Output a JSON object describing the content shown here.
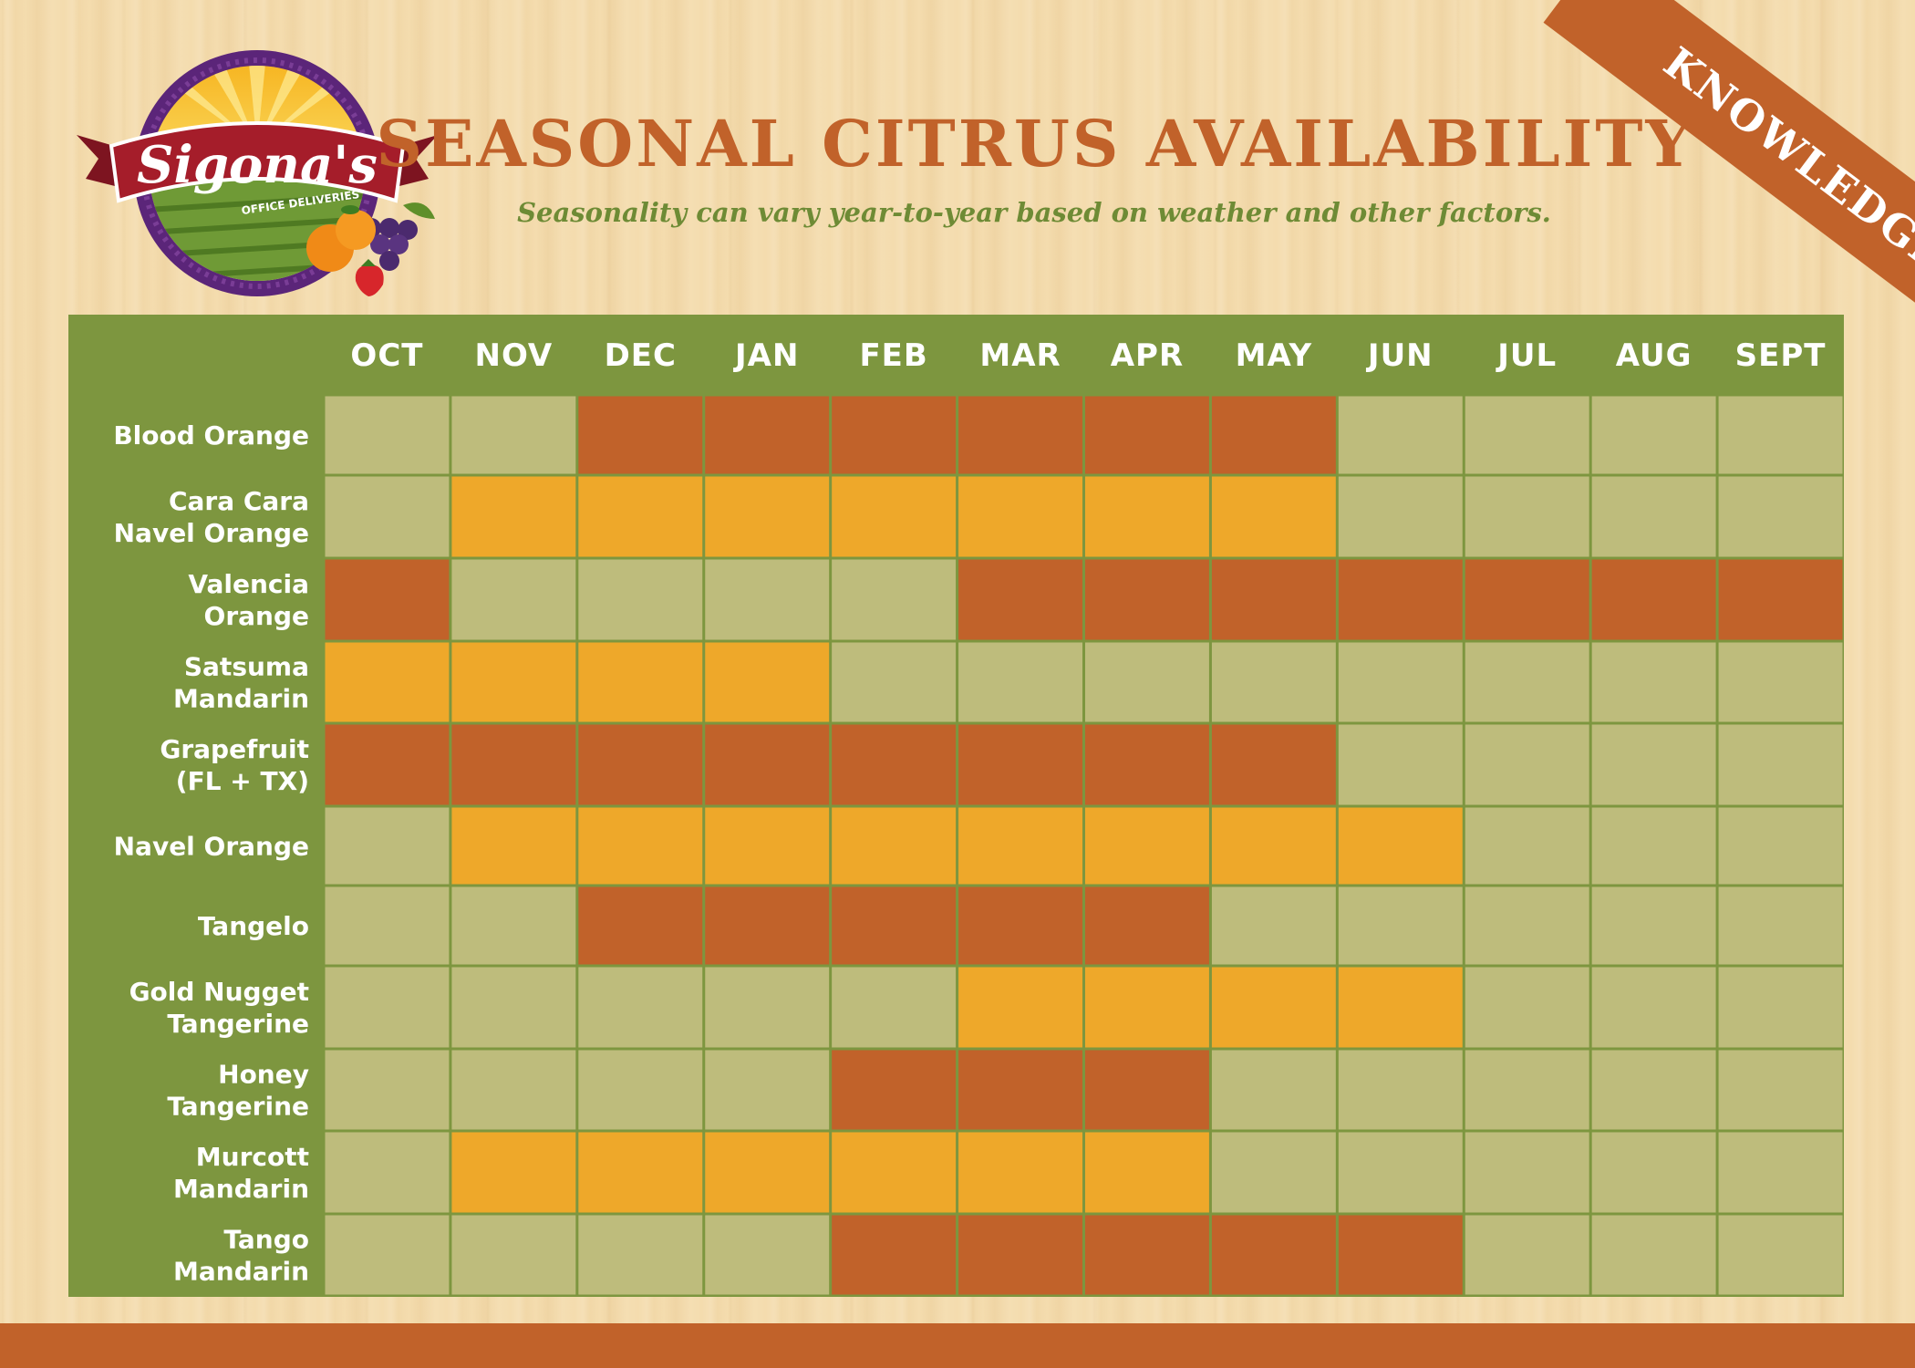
{
  "header": {
    "title": "SEASONAL CITRUS AVAILABILITY",
    "subtitle": "Seasonality can vary year-to-year based on weather and other factors.",
    "ribbon": "KNOWLEDGE"
  },
  "logo": {
    "brand": "Sigona's",
    "tagline": "OFFICE DELIVERIES"
  },
  "colors": {
    "green": "#7d963f",
    "orange_dark": "#c1622a",
    "orange_light": "#eea82a",
    "cell_empty": "#f4dcae",
    "title": "#c1622a",
    "subtitle": "#6e8b35"
  },
  "chart_data": {
    "type": "table",
    "columns": [
      "OCT",
      "NOV",
      "DEC",
      "JAN",
      "FEB",
      "MAR",
      "APR",
      "MAY",
      "JUN",
      "JUL",
      "AUG",
      "SEPT"
    ],
    "rows": [
      {
        "label": [
          "Blood Orange"
        ],
        "color": "orange_dark",
        "available": [
          0,
          0,
          1,
          1,
          1,
          1,
          1,
          1,
          0,
          0,
          0,
          0
        ]
      },
      {
        "label": [
          "Cara Cara",
          "Navel Orange"
        ],
        "color": "orange_light",
        "available": [
          0,
          1,
          1,
          1,
          1,
          1,
          1,
          1,
          0,
          0,
          0,
          0
        ]
      },
      {
        "label": [
          "Valencia",
          "Orange"
        ],
        "color": "orange_dark",
        "available": [
          1,
          0,
          0,
          0,
          0,
          1,
          1,
          1,
          1,
          1,
          1,
          1
        ]
      },
      {
        "label": [
          "Satsuma",
          "Mandarin"
        ],
        "color": "orange_light",
        "available": [
          1,
          1,
          1,
          1,
          0,
          0,
          0,
          0,
          0,
          0,
          0,
          0
        ]
      },
      {
        "label": [
          "Grapefruit",
          "(FL + TX)"
        ],
        "color": "orange_dark",
        "available": [
          1,
          1,
          1,
          1,
          1,
          1,
          1,
          1,
          0,
          0,
          0,
          0
        ]
      },
      {
        "label": [
          "Navel Orange"
        ],
        "color": "orange_light",
        "available": [
          0,
          1,
          1,
          1,
          1,
          1,
          1,
          1,
          1,
          0,
          0,
          0
        ]
      },
      {
        "label": [
          "Tangelo"
        ],
        "color": "orange_dark",
        "available": [
          0,
          0,
          1,
          1,
          1,
          1,
          1,
          0,
          0,
          0,
          0,
          0
        ]
      },
      {
        "label": [
          "Gold Nugget",
          "Tangerine"
        ],
        "color": "orange_light",
        "available": [
          0,
          0,
          0,
          0,
          0,
          1,
          1,
          1,
          1,
          0,
          0,
          0
        ]
      },
      {
        "label": [
          "Honey",
          "Tangerine"
        ],
        "color": "orange_dark",
        "available": [
          0,
          0,
          0,
          0,
          1,
          1,
          1,
          0,
          0,
          0,
          0,
          0
        ]
      },
      {
        "label": [
          "Murcott",
          "Mandarin"
        ],
        "color": "orange_light",
        "available": [
          0,
          1,
          1,
          1,
          1,
          1,
          1,
          0,
          0,
          0,
          0,
          0
        ]
      },
      {
        "label": [
          "Tango",
          "Mandarin"
        ],
        "color": "orange_dark",
        "available": [
          0,
          0,
          0,
          0,
          1,
          1,
          1,
          1,
          1,
          0,
          0,
          0
        ]
      }
    ]
  }
}
